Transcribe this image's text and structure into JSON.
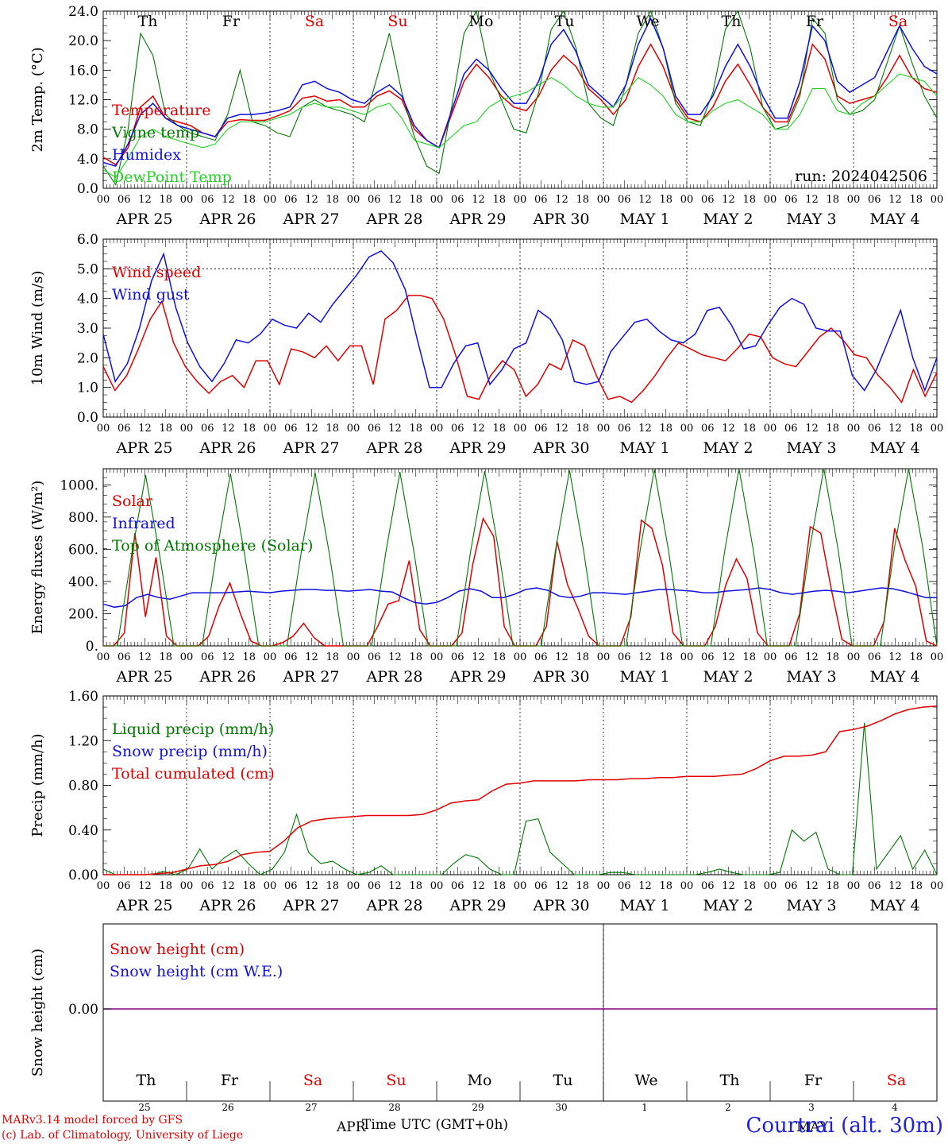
{
  "colors": {
    "red": "#e00000",
    "green": "#007800",
    "blue": "#1010e0",
    "lightgreen": "#20d020",
    "purple": "#800080"
  },
  "days": [
    {
      "dow": "Th",
      "label": "APR 25",
      "num": "25",
      "weekend": false
    },
    {
      "dow": "Fr",
      "label": "APR 26",
      "num": "26",
      "weekend": false
    },
    {
      "dow": "Sa",
      "label": "APR 27",
      "num": "27",
      "weekend": true
    },
    {
      "dow": "Su",
      "label": "APR 28",
      "num": "28",
      "weekend": true
    },
    {
      "dow": "Mo",
      "label": "APR 29",
      "num": "29",
      "weekend": false
    },
    {
      "dow": "Tu",
      "label": "APR 30",
      "num": "30",
      "weekend": false
    },
    {
      "dow": "We",
      "label": "MAY  1",
      "num": "1",
      "weekend": false
    },
    {
      "dow": "Th",
      "label": "MAY  2",
      "num": "2",
      "weekend": false
    },
    {
      "dow": "Fr",
      "label": "MAY  3",
      "num": "3",
      "weekend": false
    },
    {
      "dow": "Sa",
      "label": "MAY  4",
      "num": "4",
      "weekend": true
    }
  ],
  "hour_ticks": [
    "00",
    "06",
    "12",
    "18"
  ],
  "footer": {
    "credit_line1": "MARv3.14 model forced by GFS",
    "credit_line2": "(c) Lab. of Climatology, University of Liege",
    "xtitle": "Time UTC (GMT+0h)",
    "month_left": "APR",
    "month_right": "MAY",
    "station": "Courtrai (alt. 30m)"
  },
  "chart_data": [
    {
      "type": "line",
      "ylabel": "2m Temp. (°C)",
      "ylim": [
        0,
        24
      ],
      "yticks": [
        "0.0",
        "4.0",
        "8.0",
        "12.0",
        "16.0",
        "20.0",
        "24.0"
      ],
      "run_label": "run: 2024042506",
      "x_hours_step": 6,
      "series": [
        {
          "name": "Temperature",
          "color": "red",
          "values": [
            4.2,
            3.2,
            5.5,
            11.0,
            12.5,
            9.5,
            9.0,
            8.5,
            7.5,
            7.0,
            9.0,
            9.3,
            9.2,
            9.2,
            9.8,
            10.5,
            12.2,
            12.5,
            11.8,
            12.0,
            11.0,
            11.0,
            12.5,
            13.2,
            12.0,
            8.0,
            6.5,
            5.5,
            10.0,
            14.5,
            16.8,
            15.0,
            12.5,
            11.0,
            10.5,
            12.5,
            16.0,
            18.0,
            16.5,
            13.5,
            12.0,
            10.0,
            12.0,
            16.5,
            19.5,
            16.5,
            12.0,
            9.5,
            9.0,
            11.0,
            14.5,
            16.8,
            14.0,
            11.0,
            9.0,
            9.0,
            13.0,
            19.5,
            17.5,
            12.5,
            11.5,
            12.0,
            12.5,
            15.0,
            18.0,
            15.0,
            13.5,
            13.0
          ]
        },
        {
          "name": "Vigne temp",
          "color": "green",
          "values": [
            3.0,
            0.5,
            8.0,
            21.0,
            18.0,
            10.0,
            8.5,
            7.5,
            7.0,
            6.5,
            10.0,
            16.0,
            9.0,
            8.5,
            7.5,
            7.0,
            11.0,
            12.0,
            11.0,
            10.5,
            10.0,
            9.0,
            15.0,
            21.0,
            13.0,
            7.0,
            3.0,
            2.0,
            11.0,
            21.0,
            24.0,
            16.0,
            12.0,
            8.0,
            7.5,
            13.0,
            21.5,
            24.0,
            19.0,
            11.5,
            9.5,
            8.5,
            14.0,
            21.0,
            24.0,
            19.0,
            11.5,
            9.0,
            8.5,
            13.0,
            21.5,
            24.0,
            19.0,
            11.0,
            8.0,
            8.5,
            12.5,
            23.0,
            21.0,
            12.0,
            10.0,
            10.5,
            12.0,
            17.0,
            22.0,
            17.0,
            12.5,
            9.5
          ]
        },
        {
          "name": "Humidex",
          "color": "blue",
          "values": [
            3.5,
            3.0,
            6.0,
            10.0,
            11.5,
            9.5,
            8.5,
            8.0,
            7.5,
            7.0,
            9.5,
            10.0,
            10.0,
            10.2,
            10.5,
            11.0,
            14.0,
            14.5,
            13.5,
            13.0,
            12.0,
            11.5,
            13.0,
            14.0,
            12.5,
            8.5,
            6.5,
            5.5,
            10.5,
            15.5,
            17.5,
            16.0,
            13.5,
            11.5,
            11.5,
            14.5,
            19.5,
            21.5,
            18.5,
            14.0,
            12.5,
            11.0,
            14.0,
            19.5,
            23.0,
            19.0,
            12.5,
            10.0,
            10.0,
            12.5,
            16.5,
            19.5,
            16.5,
            12.5,
            9.5,
            9.5,
            14.5,
            22.0,
            20.0,
            14.5,
            13.0,
            14.0,
            15.0,
            18.5,
            22.0,
            19.0,
            16.5,
            15.5
          ]
        },
        {
          "name": "DewPoint Temp",
          "color": "lightgreen",
          "values": [
            2.5,
            1.5,
            4.0,
            7.0,
            8.0,
            7.0,
            6.5,
            6.0,
            5.5,
            6.0,
            8.0,
            9.0,
            9.0,
            9.0,
            9.5,
            10.0,
            11.0,
            11.5,
            11.0,
            11.0,
            10.5,
            10.0,
            11.0,
            11.5,
            9.5,
            6.5,
            6.0,
            5.5,
            7.0,
            8.5,
            9.0,
            11.0,
            12.0,
            12.5,
            13.0,
            14.0,
            15.0,
            14.0,
            12.5,
            11.5,
            11.0,
            11.0,
            13.0,
            15.0,
            14.0,
            12.5,
            10.0,
            9.0,
            9.0,
            10.5,
            11.5,
            12.0,
            11.0,
            10.0,
            8.0,
            8.0,
            10.0,
            13.5,
            13.5,
            10.5,
            10.0,
            11.5,
            12.5,
            14.0,
            15.5,
            15.0,
            14.5,
            12.5
          ]
        }
      ]
    },
    {
      "type": "line",
      "ylabel": "10m Wind (m/s)",
      "ylim": [
        0,
        6
      ],
      "yticks": [
        "0.0",
        "1.0",
        "2.0",
        "3.0",
        "4.0",
        "5.0",
        "6.0"
      ],
      "ref_line": 5.0,
      "x_hours_step": 6,
      "series": [
        {
          "name": "Wind speed",
          "color": "red",
          "values": [
            1.7,
            0.9,
            1.4,
            2.3,
            3.3,
            3.9,
            2.5,
            1.7,
            1.2,
            0.8,
            1.2,
            1.4,
            1.0,
            1.9,
            1.9,
            1.1,
            2.3,
            2.2,
            2.0,
            2.4,
            1.9,
            2.4,
            2.4,
            1.1,
            3.3,
            3.6,
            4.1,
            4.1,
            4.0,
            3.3,
            2.1,
            0.7,
            0.6,
            1.4,
            1.9,
            1.6,
            0.7,
            1.1,
            1.8,
            1.6,
            2.6,
            2.4,
            1.4,
            0.6,
            0.7,
            0.5,
            0.9,
            1.4,
            2.0,
            2.5,
            2.3,
            2.1,
            2.0,
            1.9,
            2.3,
            2.8,
            2.7,
            2.0,
            1.8,
            1.7,
            2.2,
            2.7,
            3.0,
            2.6,
            2.1,
            2.0,
            1.4,
            1.0,
            0.5,
            1.6,
            0.7,
            1.5
          ]
        },
        {
          "name": "Wind gust",
          "color": "blue",
          "values": [
            2.8,
            1.2,
            1.8,
            3.0,
            4.6,
            5.5,
            3.7,
            2.5,
            1.7,
            1.2,
            1.8,
            2.6,
            2.5,
            2.8,
            3.3,
            3.1,
            3.0,
            3.5,
            3.2,
            3.8,
            4.3,
            4.8,
            5.4,
            5.6,
            5.2,
            4.3,
            2.6,
            1.0,
            1.0,
            1.8,
            2.4,
            2.5,
            1.1,
            1.6,
            2.3,
            2.5,
            3.6,
            3.3,
            2.6,
            1.2,
            1.1,
            1.2,
            2.2,
            2.7,
            3.2,
            3.3,
            2.9,
            2.6,
            2.5,
            2.8,
            3.6,
            3.7,
            3.1,
            2.3,
            2.4,
            3.1,
            3.7,
            4.0,
            3.8,
            3.0,
            2.9,
            2.9,
            1.4,
            0.9,
            1.6,
            2.6,
            3.6,
            2.0,
            0.9,
            2.0
          ]
        }
      ]
    },
    {
      "type": "line",
      "ylabel": "Energy fluxes (W/m²)",
      "ylim": [
        0,
        1100
      ],
      "yticks": [
        "0.",
        "200.",
        "400.",
        "600.",
        "800.",
        "1000."
      ],
      "x_hours_step": 6,
      "series": [
        {
          "name": "Solar",
          "color": "red",
          "values": [
            0,
            0,
            80,
            700,
            180,
            550,
            60,
            0,
            0,
            0,
            60,
            250,
            390,
            200,
            30,
            0,
            0,
            20,
            60,
            140,
            50,
            0,
            0,
            0,
            0,
            0,
            120,
            260,
            280,
            530,
            100,
            0,
            0,
            0,
            80,
            500,
            790,
            680,
            120,
            0,
            0,
            0,
            120,
            650,
            380,
            230,
            60,
            0,
            0,
            0,
            180,
            780,
            730,
            500,
            80,
            0,
            0,
            0,
            120,
            380,
            540,
            420,
            80,
            0,
            0,
            0,
            200,
            740,
            700,
            350,
            40,
            0,
            0,
            0,
            150,
            730,
            530,
            370,
            30,
            0
          ]
        },
        {
          "name": "Infrared",
          "color": "blue",
          "values": [
            260,
            240,
            250,
            300,
            320,
            300,
            290,
            310,
            330,
            330,
            330,
            330,
            335,
            340,
            335,
            330,
            340,
            345,
            350,
            350,
            345,
            345,
            340,
            345,
            350,
            340,
            335,
            300,
            270,
            260,
            270,
            300,
            340,
            355,
            340,
            300,
            300,
            320,
            350,
            360,
            345,
            310,
            300,
            310,
            330,
            330,
            325,
            320,
            330,
            340,
            350,
            350,
            345,
            340,
            330,
            330,
            340,
            345,
            350,
            360,
            350,
            330,
            320,
            330,
            340,
            345,
            340,
            330,
            340,
            350,
            360,
            355,
            340,
            320,
            300,
            300
          ]
        },
        {
          "name": "Top of Atmosphere (Solar)",
          "color": "green",
          "values": [
            0,
            0,
            560,
            1060,
            560,
            0,
            0,
            0,
            570,
            1070,
            570,
            0,
            0,
            0,
            575,
            1075,
            575,
            0,
            0,
            0,
            580,
            1080,
            580,
            0,
            0,
            0,
            585,
            1085,
            585,
            0,
            0,
            0,
            590,
            1090,
            590,
            0,
            0,
            0,
            595,
            1095,
            595,
            0,
            0,
            0,
            600,
            1100,
            600,
            0,
            0,
            0,
            605,
            1100,
            605,
            0,
            0,
            0,
            610,
            1100,
            610,
            0
          ]
        }
      ]
    },
    {
      "type": "line",
      "ylabel": "Precip (mm/h)",
      "ylim": [
        0,
        1.6
      ],
      "yticks": [
        "0.00",
        "0.40",
        "0.80",
        "1.20",
        "1.60"
      ],
      "x_hours_step": 6,
      "series": [
        {
          "name": "Liquid precip (mm/h)",
          "color": "green",
          "values": [
            0.05,
            0.0,
            0.0,
            0.0,
            0.0,
            0.03,
            0.0,
            0.05,
            0.23,
            0.05,
            0.15,
            0.22,
            0.1,
            0.0,
            0.05,
            0.2,
            0.54,
            0.2,
            0.1,
            0.12,
            0.05,
            0.0,
            0.02,
            0.08,
            0.0,
            0.0,
            0.0,
            0.0,
            0.0,
            0.1,
            0.18,
            0.15,
            0.05,
            0.0,
            0.0,
            0.48,
            0.5,
            0.2,
            0.1,
            0.0,
            0.0,
            0.0,
            0.02,
            0.02,
            0.0,
            0.0,
            0.0,
            0.0,
            0.0,
            0.0,
            0.02,
            0.05,
            0.02,
            0.0,
            0.0,
            0.0,
            0.02,
            0.4,
            0.3,
            0.38,
            0.05,
            0.0,
            0.0,
            1.36,
            0.05,
            0.2,
            0.35,
            0.05,
            0.22,
            0.0
          ]
        },
        {
          "name": "Snow precip (mm/h)",
          "color": "blue",
          "values": []
        },
        {
          "name": "Total cumulated (cm)",
          "color": "red",
          "values": [
            0.0,
            0.0,
            0.0,
            0.0,
            0.01,
            0.02,
            0.05,
            0.08,
            0.09,
            0.12,
            0.18,
            0.2,
            0.21,
            0.3,
            0.42,
            0.48,
            0.5,
            0.51,
            0.52,
            0.53,
            0.53,
            0.53,
            0.53,
            0.54,
            0.58,
            0.64,
            0.66,
            0.67,
            0.75,
            0.81,
            0.82,
            0.84,
            0.84,
            0.84,
            0.84,
            0.85,
            0.85,
            0.85,
            0.86,
            0.86,
            0.87,
            0.87,
            0.88,
            0.88,
            0.88,
            0.89,
            0.9,
            0.95,
            1.02,
            1.06,
            1.06,
            1.07,
            1.1,
            1.28,
            1.3,
            1.33,
            1.38,
            1.44,
            1.48,
            1.5,
            1.51
          ]
        }
      ]
    },
    {
      "type": "line",
      "ylabel": "Snow height (cm)",
      "ytick_zero": "0.00",
      "series": [
        {
          "name": "Snow height (cm)",
          "color": "red",
          "values": [
            0,
            0
          ]
        },
        {
          "name": "Snow height (cm W.E.)",
          "color": "blue",
          "values": [
            0,
            0
          ]
        }
      ]
    }
  ]
}
